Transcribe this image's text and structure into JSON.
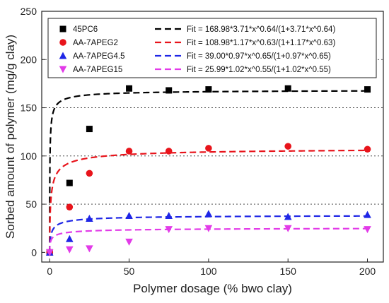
{
  "chart_data": {
    "type": "scatter",
    "xlabel": "Polymer dosage (% bwo clay)",
    "ylabel": "Sorbed amount of polymer (mg/g clay)",
    "xlim": [
      -5,
      210
    ],
    "ylim": [
      -10,
      250
    ],
    "x_ticks": [
      0,
      50,
      100,
      150,
      200
    ],
    "y_ticks": [
      0,
      50,
      100,
      150,
      200,
      250
    ],
    "grid": "horizontal dotted",
    "legend_position": "top",
    "series": [
      {
        "name": "45PC6",
        "marker": "square",
        "color": "#000000",
        "x": [
          0,
          12.5,
          25,
          50,
          75,
          100,
          150,
          200
        ],
        "y": [
          0,
          72,
          128,
          170,
          168,
          169,
          170,
          169
        ]
      },
      {
        "name": "AA-7APEG2",
        "marker": "circle",
        "color": "#e8141b",
        "x": [
          0,
          12.5,
          25,
          50,
          75,
          100,
          150,
          200
        ],
        "y": [
          0,
          47,
          82,
          105,
          105,
          108,
          110,
          107
        ]
      },
      {
        "name": "AA-7APEG4.5",
        "marker": "triangle-up",
        "color": "#1f26e6",
        "x": [
          0,
          12.5,
          25,
          50,
          75,
          100,
          150,
          200
        ],
        "y": [
          0,
          14,
          35,
          38,
          38,
          40,
          37,
          39
        ]
      },
      {
        "name": "AA-7APEG15",
        "marker": "triangle-down",
        "color": "#e23be8",
        "x": [
          0,
          12.5,
          25,
          50,
          75,
          100,
          150,
          200
        ],
        "y": [
          0,
          3,
          4,
          11,
          24,
          25,
          25,
          24
        ]
      }
    ],
    "fits": [
      {
        "label": "Fit = 168.98*3.71*x^0.64/(1+3.71*x^0.64)",
        "qmax": 168.98,
        "k": 3.71,
        "n": 0.64,
        "color": "#000000"
      },
      {
        "label": "Fit = 108.98*1.17*x^0.63/(1+1.17*x^0.63)",
        "qmax": 108.98,
        "k": 1.17,
        "n": 0.63,
        "color": "#e8141b"
      },
      {
        "label": "Fit = 39.00*0.97*x^0.65/(1+0.97*x^0.65)",
        "qmax": 39.0,
        "k": 0.97,
        "n": 0.65,
        "color": "#1f26e6"
      },
      {
        "label": "Fit = 25.99*1.02*x^0.55/(1+1.02*x^0.55)",
        "qmax": 25.99,
        "k": 1.02,
        "n": 0.55,
        "color": "#e23be8"
      }
    ]
  }
}
